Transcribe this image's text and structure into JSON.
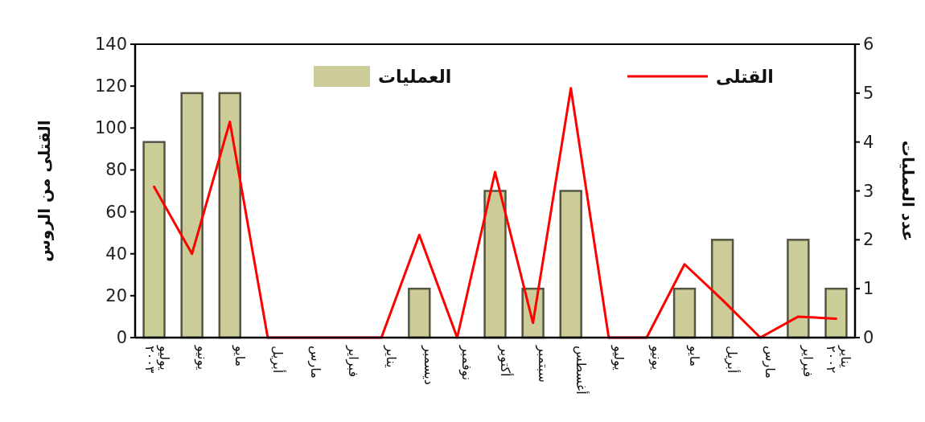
{
  "chart_data": {
    "type": "bar",
    "ylabel": "القتلى من الروس",
    "y2label": "عدد العمليات",
    "categories": [
      "يوليو\n٢٠٠٣",
      "يونيو",
      "مايو",
      "أبريل",
      "مارس",
      "فبراير",
      "يناير",
      "ديسمبر",
      "نوفمبر",
      "أكتوبر",
      "سبتمبر",
      "أغسطس",
      "يوليو",
      "يونيو",
      "مايو",
      "أبريل",
      "مارس",
      "فبراير",
      "يناير\n٢٠٠٢"
    ],
    "series": [
      {
        "name": "العمليات",
        "axis": "y2",
        "color": "#cccc99",
        "values": [
          4,
          5,
          5,
          0,
          0,
          0,
          0,
          1,
          0,
          3,
          1,
          3,
          0,
          0,
          1,
          2,
          0,
          2,
          1
        ]
      },
      {
        "name": "القتلى",
        "type": "line",
        "color": "#ff0000",
        "values": [
          72,
          40,
          103,
          0,
          0,
          0,
          0,
          49,
          0,
          79,
          7,
          119,
          0,
          0,
          35,
          18,
          0,
          10,
          9
        ]
      }
    ],
    "ylim": [
      0,
      140
    ],
    "yticks": [
      0,
      20,
      40,
      60,
      80,
      100,
      120,
      140
    ],
    "y2lim": [
      0,
      6
    ],
    "y2ticks": [
      0,
      1,
      2,
      3,
      4,
      5,
      6
    ],
    "legend": "top",
    "grid": false,
    "line_style": "solid",
    "marker": "none"
  }
}
